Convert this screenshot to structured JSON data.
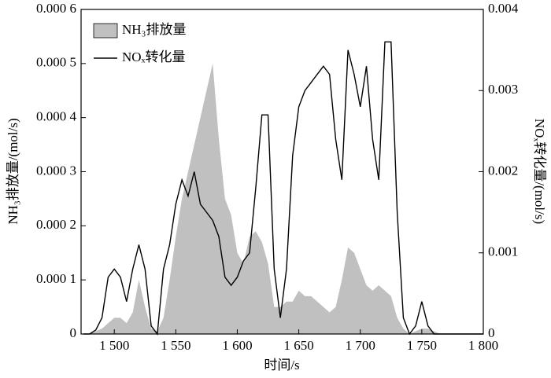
{
  "chart_data": {
    "type": "line",
    "x_label": "时间/s",
    "y_label": "NH₃排放量/(mol/s)",
    "y2_label": "NOₓ转化量/(mol/s)",
    "legend": "top-left",
    "x": [
      1475,
      1480,
      1485,
      1490,
      1495,
      1500,
      1505,
      1510,
      1515,
      1520,
      1525,
      1530,
      1535,
      1540,
      1545,
      1550,
      1555,
      1560,
      1565,
      1570,
      1575,
      1580,
      1585,
      1590,
      1595,
      1600,
      1605,
      1610,
      1615,
      1620,
      1625,
      1630,
      1635,
      1640,
      1645,
      1650,
      1655,
      1660,
      1665,
      1670,
      1675,
      1680,
      1685,
      1690,
      1695,
      1700,
      1705,
      1710,
      1715,
      1720,
      1725,
      1730,
      1735,
      1740,
      1745,
      1750,
      1755,
      1760,
      1765,
      1770,
      1775,
      1780,
      1785,
      1790,
      1795,
      1800
    ],
    "series": [
      {
        "name": "NH₃排放量",
        "type": "area",
        "color": "#c0c0c0",
        "axis": "y",
        "values": [
          0,
          0,
          5e-06,
          1e-05,
          2e-05,
          3e-05,
          3e-05,
          2e-05,
          4e-05,
          0.0001,
          5e-05,
          1e-05,
          5e-06,
          3e-05,
          0.0001,
          0.00018,
          0.00025,
          0.0003,
          0.00035,
          0.0004,
          0.00045,
          0.0005,
          0.00036,
          0.00025,
          0.00022,
          0.00015,
          0.00013,
          0.00018,
          0.00019,
          0.00017,
          0.00013,
          5e-05,
          5e-05,
          6e-05,
          6e-05,
          8e-05,
          7e-05,
          7e-05,
          6e-05,
          5e-05,
          4e-05,
          5e-05,
          0.0001,
          0.00016,
          0.00015,
          0.00012,
          9e-05,
          8e-05,
          9e-05,
          8e-05,
          7e-05,
          3e-05,
          1e-05,
          0,
          5e-06,
          1e-05,
          1e-05,
          5e-06,
          0,
          0,
          0,
          0,
          0,
          0,
          0,
          0
        ]
      },
      {
        "name": "NOₓ转化量",
        "type": "line",
        "color": "#000000",
        "axis": "y2",
        "values": [
          0,
          0,
          5e-05,
          0.0002,
          0.0007,
          0.0008,
          0.0007,
          0.0004,
          0.0008,
          0.0011,
          0.0008,
          0.0001,
          0,
          0.0008,
          0.0011,
          0.0016,
          0.0019,
          0.0017,
          0.002,
          0.0016,
          0.0015,
          0.0014,
          0.0012,
          0.0007,
          0.0006,
          0.0007,
          0.0009,
          0.001,
          0.0018,
          0.0027,
          0.0027,
          0.0008,
          0.0002,
          0.0008,
          0.0022,
          0.0028,
          0.003,
          0.0031,
          0.0032,
          0.0033,
          0.0032,
          0.0024,
          0.0019,
          0.0035,
          0.0032,
          0.0028,
          0.0033,
          0.0024,
          0.0019,
          0.0036,
          0.0036,
          0.0015,
          0.0002,
          0,
          0.0001,
          0.0004,
          0.0001,
          0,
          0,
          0,
          0,
          0,
          0,
          0,
          0,
          0
        ]
      }
    ],
    "xlim": [
      1473,
      1800
    ],
    "xticks": [
      {
        "value": 1500,
        "label": "1 500"
      },
      {
        "value": 1550,
        "label": "1 550"
      },
      {
        "value": 1600,
        "label": "1 600"
      },
      {
        "value": 1650,
        "label": "1 650"
      },
      {
        "value": 1700,
        "label": "1 700"
      },
      {
        "value": 1750,
        "label": "1 750"
      },
      {
        "value": 1800,
        "label": "1 800"
      }
    ],
    "ylim": [
      0,
      0.0006
    ],
    "yticks": [
      0,
      {
        "value": 0.0001,
        "label": "0.000 1"
      },
      {
        "value": 0.0002,
        "label": "0.000 2"
      },
      {
        "value": 0.0003,
        "label": "0.000 3"
      },
      {
        "value": 0.0004,
        "label": "0.000 4"
      },
      {
        "value": 0.0005,
        "label": "0.000 5"
      },
      {
        "value": 0.0006,
        "label": "0.000 6"
      }
    ],
    "y2lim": [
      0,
      0.004
    ],
    "y2ticks": [
      0,
      0.001,
      0.002,
      0.003,
      0.004
    ]
  }
}
